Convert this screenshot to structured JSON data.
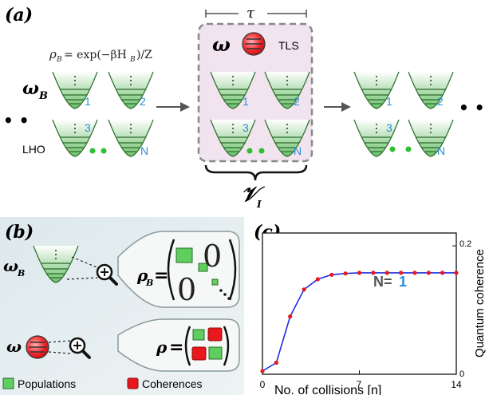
{
  "panel_a": {
    "label": "(a)",
    "tau": "τ",
    "omega": "ω",
    "omega_b": "ω",
    "omega_b_sub": "B",
    "rho_eq": "ρ",
    "rho_sub": "B",
    "rho_rhs": "= exp(−βH",
    "rho_rhs_sub": "B",
    "rho_rhs_tail": ")/Z",
    "tls": "TLS",
    "lho": "LHO",
    "osc_labels": [
      "1",
      "2",
      "3",
      "N"
    ],
    "interaction": "𝒱",
    "interaction_sub": "I",
    "ellipsis": "• •"
  },
  "panel_b": {
    "label": "(b)",
    "omega_b": "ω",
    "omega_b_sub": "B",
    "omega": "ω",
    "rho_b": "ρ",
    "rho_b_sub": "B",
    "rho": "ρ",
    "equals": "=",
    "zero": "0",
    "legend": [
      "Populations",
      "Coherences"
    ],
    "colors": {
      "population": "#5fce5f",
      "coherence": "#e8181d",
      "bg": "#e8f0f2"
    }
  },
  "panel_c": {
    "label": "(c)",
    "annotation_prefix": "N=",
    "annotation_value": "1",
    "xlabel": "No. of collisions [n]",
    "ylabel": "Quantum coherence",
    "xticks": [
      "0",
      "7",
      "14"
    ],
    "yticks": [
      "0",
      "0.2"
    ]
  },
  "chart_data": {
    "type": "line",
    "x": [
      0,
      1,
      2,
      3,
      4,
      5,
      6,
      7,
      8,
      9,
      10,
      11,
      12,
      13,
      14
    ],
    "series": [
      {
        "values": [
          0.005,
          0.018,
          0.09,
          0.132,
          0.148,
          0.155,
          0.157,
          0.158,
          0.158,
          0.158,
          0.158,
          0.158,
          0.158,
          0.158,
          0.158
        ]
      }
    ],
    "xlim": [
      0,
      14
    ],
    "ylim": [
      0,
      0.22
    ],
    "line_color": "#1f2ee0",
    "marker_color": "#e8181d"
  }
}
